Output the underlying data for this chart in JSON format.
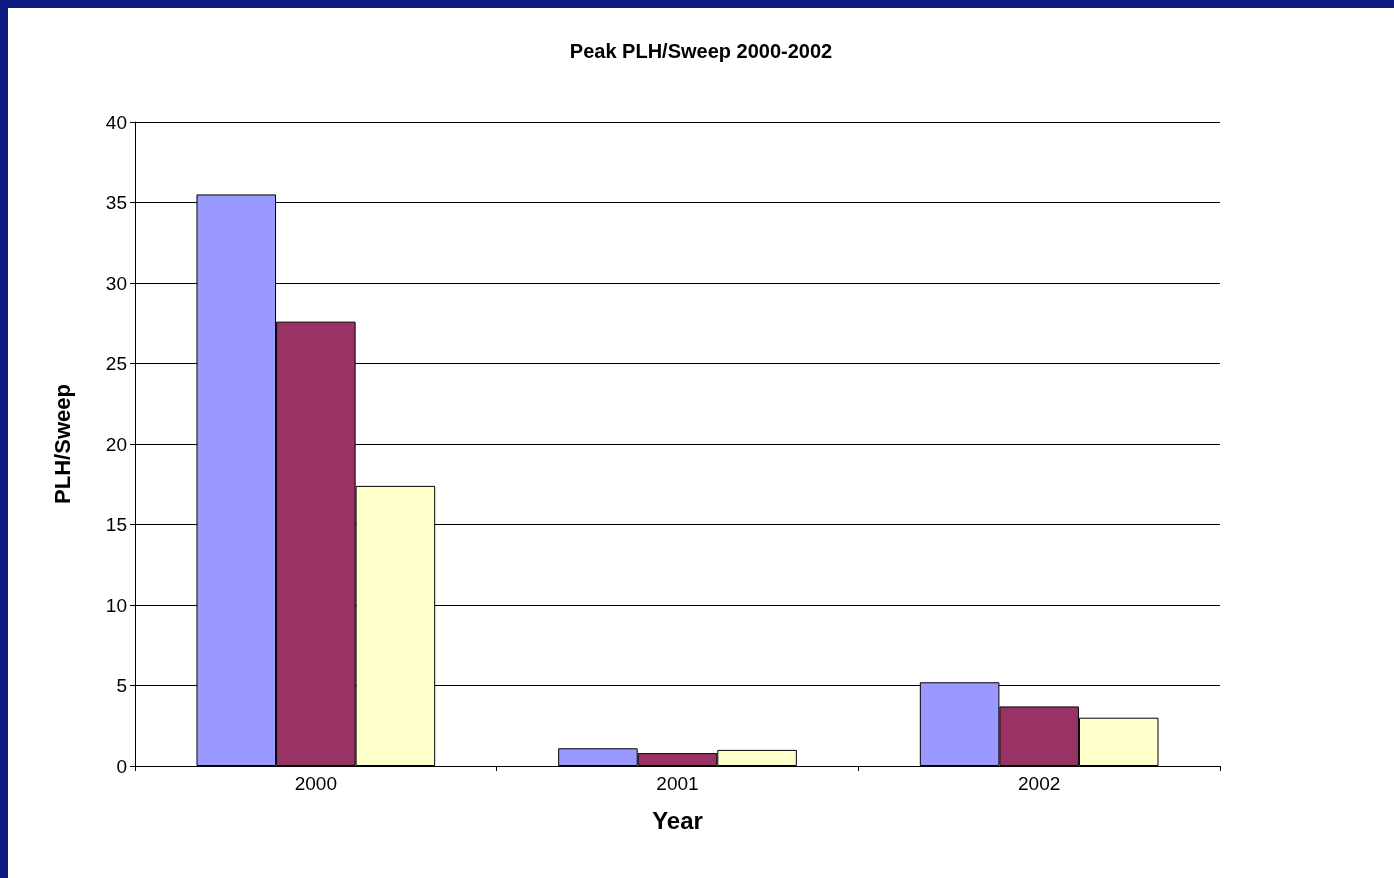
{
  "chart_data": {
    "type": "bar",
    "title": "Peak PLH/Sweep 2000-2002",
    "xlabel": "Year",
    "ylabel": "PLH/Sweep",
    "categories": [
      "2000",
      "2001",
      "2002"
    ],
    "series": [
      {
        "color": "#9999ff",
        "values": [
          35.5,
          1.1,
          5.2
        ]
      },
      {
        "color": "#993366",
        "values": [
          27.6,
          0.8,
          3.7
        ]
      },
      {
        "color": "#ffffcc",
        "values": [
          17.4,
          1.0,
          3.0
        ]
      }
    ],
    "ylim": [
      0,
      40
    ],
    "yticks": [
      0,
      5,
      10,
      15,
      20,
      25,
      30,
      35,
      40
    ],
    "grid": "y"
  }
}
